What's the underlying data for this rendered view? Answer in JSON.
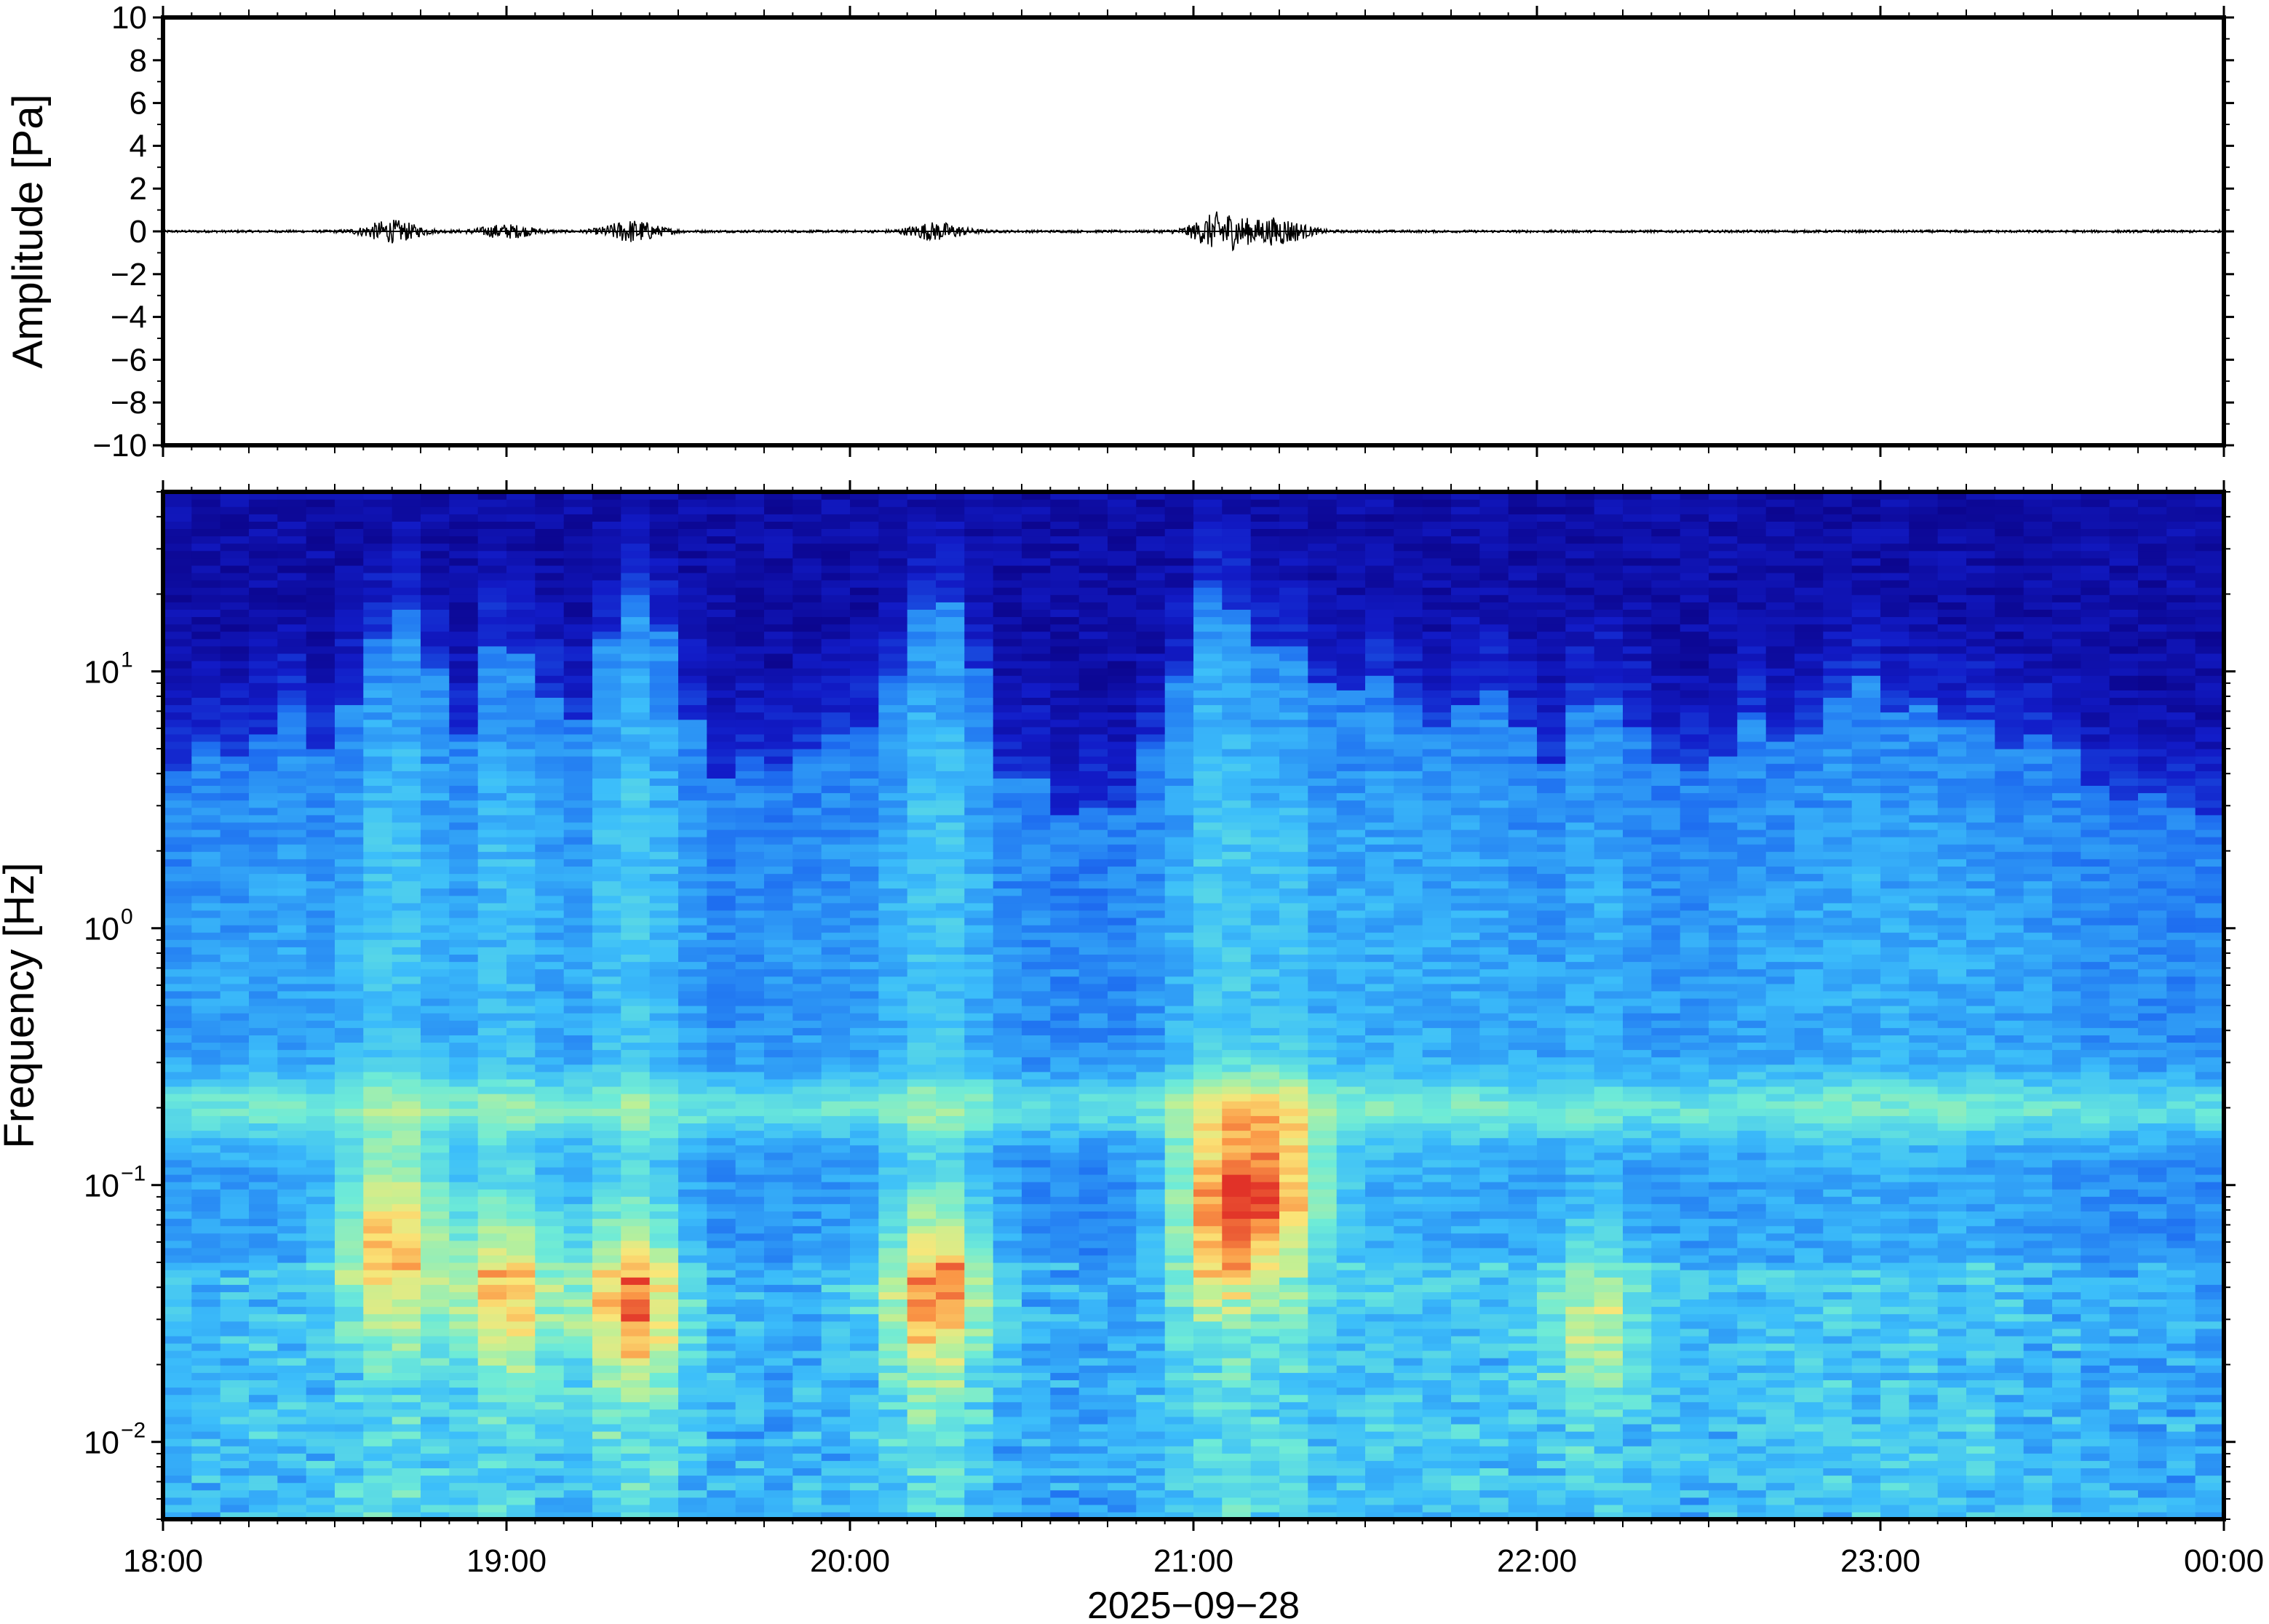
{
  "chart_data": [
    {
      "type": "line",
      "panel": "waveform",
      "ylabel": "Amplitude [Pa]",
      "ylim": [
        -10,
        10
      ],
      "ytick_values": [
        10,
        8,
        6,
        4,
        2,
        0,
        -2,
        -4,
        -6,
        -8,
        -10
      ],
      "ytick_labels": [
        "10",
        "8",
        "6",
        "4",
        "2",
        "0",
        "−2",
        "−4",
        "−6",
        "−8",
        "−10"
      ],
      "xlim": [
        "18:00",
        "00:00"
      ],
      "baseline": 0,
      "bursts": [
        {
          "time": "18:40",
          "amplitude": 0.5
        },
        {
          "time": "19:00",
          "amplitude": 0.3
        },
        {
          "time": "19:22",
          "amplitude": 0.5
        },
        {
          "time": "20:15",
          "amplitude": 0.4
        },
        {
          "time": "21:05",
          "amplitude": 0.9
        },
        {
          "time": "21:15",
          "amplitude": 0.6
        }
      ],
      "line_color": "#000000"
    },
    {
      "type": "heatmap",
      "panel": "spectrogram",
      "ylabel": "Frequency [Hz]",
      "yscale": "log",
      "ylim": [
        0.005,
        50
      ],
      "ytick_labels": [
        {
          "base": "10",
          "exp": "1",
          "value": 10
        },
        {
          "base": "10",
          "exp": "0",
          "value": 1
        },
        {
          "base": "10",
          "exp": "−1",
          "value": 0.1
        },
        {
          "base": "10",
          "exp": "−2",
          "value": 0.01
        }
      ],
      "xlim": [
        "18:00",
        "00:00"
      ],
      "xtick_labels": [
        "18:00",
        "19:00",
        "20:00",
        "21:00",
        "22:00",
        "23:00",
        "00:00"
      ],
      "xlabel": "2025−09−28",
      "colormap": "jet",
      "microbarom_band_hz": 0.2,
      "events": [
        {
          "time": "18:40",
          "peak_hz": 0.06,
          "strength": 0.85
        },
        {
          "time": "19:00",
          "peak_hz": 0.04,
          "strength": 0.75
        },
        {
          "time": "19:22",
          "peak_hz": 0.035,
          "strength": 0.85
        },
        {
          "time": "20:15",
          "peak_hz": 0.04,
          "strength": 0.85
        },
        {
          "time": "21:05",
          "peak_hz": 0.08,
          "strength": 0.9
        },
        {
          "time": "21:15",
          "peak_hz": 0.1,
          "strength": 0.8
        },
        {
          "time": "22:10",
          "peak_hz": 0.03,
          "strength": 0.55
        }
      ]
    }
  ]
}
